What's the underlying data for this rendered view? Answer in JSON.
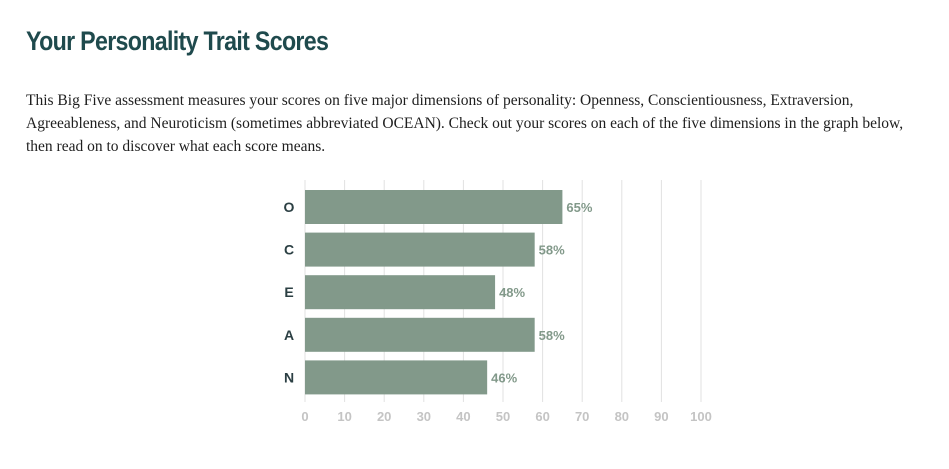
{
  "header": {
    "title": "Your Personality Trait Scores"
  },
  "intro": {
    "text": "This Big Five assessment measures your scores on five major dimensions of personality: Openness, Conscientiousness, Extraversion, Agreeableness, and Neuroticism (sometimes abbreviated OCEAN). Check out your scores on each of the five dimensions in the graph below, then read on to discover what each score means."
  },
  "colors": {
    "title": "#1f4a4d",
    "bar": "#82998a",
    "value_label": "#82998a",
    "category_label": "#2b3f43",
    "gridline": "#e1e1e1",
    "tick_label": "#c4c4c4"
  },
  "chart_data": {
    "type": "bar",
    "orientation": "horizontal",
    "categories": [
      "O",
      "C",
      "E",
      "A",
      "N"
    ],
    "values": [
      65,
      58,
      48,
      58,
      46
    ],
    "value_labels": [
      "65%",
      "58%",
      "48%",
      "58%",
      "46%"
    ],
    "xlim": [
      0,
      100
    ],
    "xticks": [
      0,
      10,
      20,
      30,
      40,
      50,
      60,
      70,
      80,
      90,
      100
    ],
    "grid": true,
    "legend": "none"
  }
}
